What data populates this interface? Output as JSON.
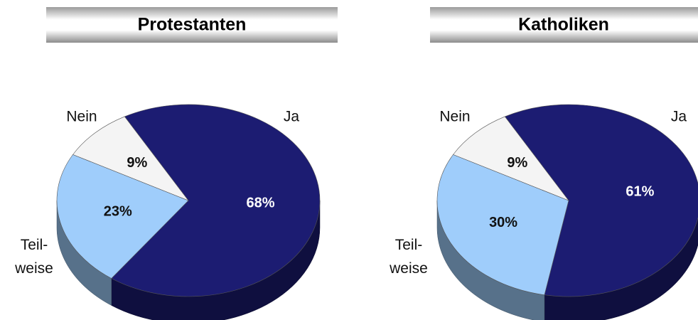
{
  "chart_data": [
    {
      "type": "pie",
      "title": "Protestanten",
      "categories": [
        "Ja",
        "Teil-\nweise",
        "Nein"
      ],
      "values": [
        68,
        23,
        9
      ],
      "value_labels": [
        "68%",
        "23%",
        "9%"
      ],
      "colors": [
        "#1c1c72",
        "#9fcdfb",
        "#f4f4f4"
      ]
    },
    {
      "type": "pie",
      "title": "Katholiken",
      "categories": [
        "Ja",
        "Teil-\nweise",
        "Nein"
      ],
      "values": [
        61,
        30,
        9
      ],
      "value_labels": [
        "61%",
        "30%",
        "9%"
      ],
      "colors": [
        "#1c1c72",
        "#9fcdfb",
        "#f4f4f4"
      ]
    }
  ]
}
